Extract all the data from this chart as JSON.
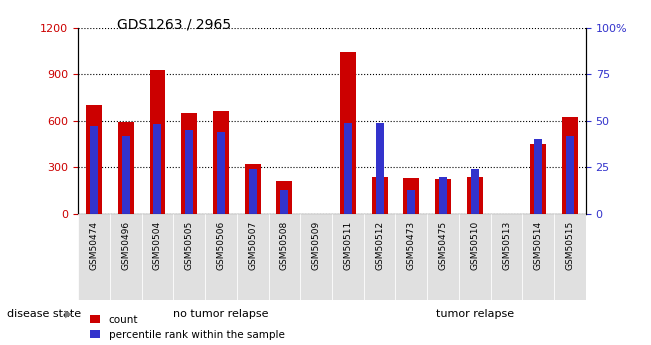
{
  "title": "GDS1263 / 2965",
  "samples": [
    "GSM50474",
    "GSM50496",
    "GSM50504",
    "GSM50505",
    "GSM50506",
    "GSM50507",
    "GSM50508",
    "GSM50509",
    "GSM50511",
    "GSM50512",
    "GSM50473",
    "GSM50475",
    "GSM50510",
    "GSM50513",
    "GSM50514",
    "GSM50515"
  ],
  "count_values": [
    700,
    590,
    930,
    650,
    665,
    320,
    215,
    0,
    1040,
    235,
    230,
    225,
    235,
    0,
    450,
    625
  ],
  "percentile_values": [
    47,
    42,
    48,
    45,
    44,
    24,
    13,
    0,
    49,
    49,
    13,
    20,
    24,
    0,
    40,
    42
  ],
  "no_tumor_count": 9,
  "count_color": "#cc0000",
  "percentile_color": "#3333cc",
  "bar_width": 0.5,
  "pct_bar_width": 0.25,
  "ylim_left": [
    0,
    1200
  ],
  "ylim_right": [
    0,
    100
  ],
  "yticks_left": [
    0,
    300,
    600,
    900,
    1200
  ],
  "yticks_right": [
    0,
    25,
    50,
    75,
    100
  ],
  "yticklabels_right": [
    "0",
    "25",
    "50",
    "75",
    "100%"
  ],
  "tick_label_color_left": "#cc0000",
  "tick_label_color_right": "#3333cc",
  "bg_plot": "#ffffff",
  "bg_notumor": "#ccffcc",
  "bg_tumor": "#44dd44",
  "bg_xticklabels": "#e0e0e0",
  "disease_state_label": "disease state",
  "no_tumor_label": "no tumor relapse",
  "tumor_label": "tumor relapse",
  "legend_count": "count",
  "legend_percentile": "percentile rank within the sample"
}
